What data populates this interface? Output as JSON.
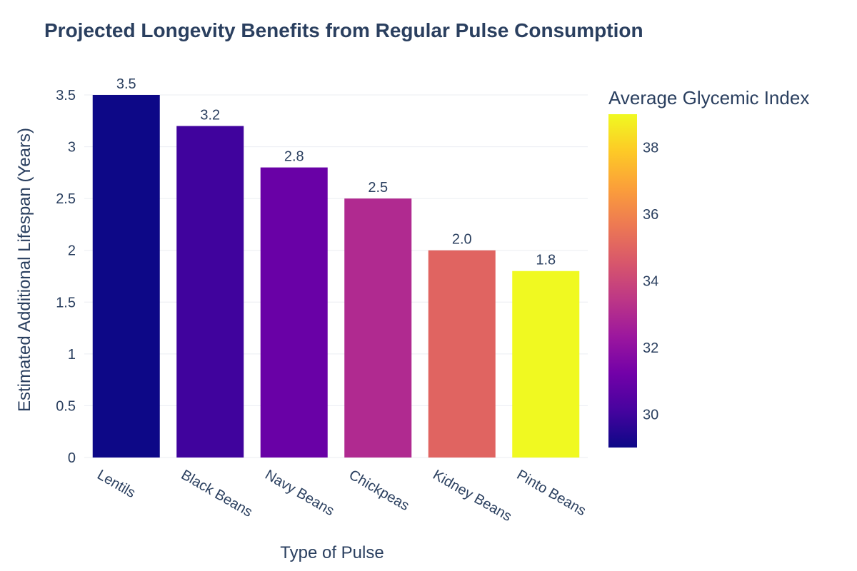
{
  "chart_data": {
    "type": "bar",
    "title": "Projected Longevity Benefits from Regular Pulse Consumption",
    "xlabel": "Type of Pulse",
    "ylabel": "Estimated Additional Lifespan (Years)",
    "categories": [
      "Lentils",
      "Black Beans",
      "Navy Beans",
      "Chickpeas",
      "Kidney Beans",
      "Pinto Beans"
    ],
    "values": [
      3.5,
      3.2,
      2.8,
      2.5,
      2.0,
      1.8
    ],
    "value_labels": [
      "3.5",
      "3.2",
      "2.8",
      "2.5",
      "2.0",
      "1.8"
    ],
    "color_values": [
      29,
      30,
      31,
      33,
      35,
      39
    ],
    "ylim": [
      0,
      3.5
    ],
    "yticks": [
      0,
      0.5,
      1,
      1.5,
      2,
      2.5,
      3,
      3.5
    ],
    "ytick_labels": [
      "0",
      "0.5",
      "1",
      "1.5",
      "2",
      "2.5",
      "3",
      "3.5"
    ],
    "grid": true,
    "colorbar": {
      "title": "Average Glycemic Index",
      "range": [
        29,
        39
      ],
      "ticks": [
        30,
        32,
        34,
        36,
        38
      ],
      "tick_labels": [
        "30",
        "32",
        "34",
        "36",
        "38"
      ],
      "colorscale": "plasma",
      "placement": "right"
    }
  }
}
